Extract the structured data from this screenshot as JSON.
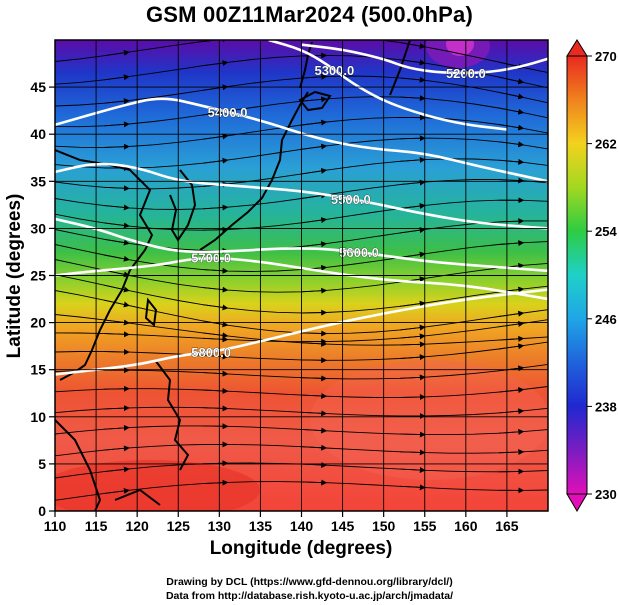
{
  "title": "GSM 00Z11Mar2024 (500.0hPa)",
  "xlabel": "Longitude (degrees)",
  "ylabel": "Latitude  (degrees)",
  "x_ticks": [
    110,
    115,
    120,
    125,
    130,
    135,
    140,
    145,
    150,
    155,
    160,
    165
  ],
  "y_ticks": [
    0,
    5,
    10,
    15,
    20,
    25,
    30,
    35,
    40,
    45
  ],
  "x_range": [
    110,
    170
  ],
  "y_range": [
    0,
    50
  ],
  "colorbar": {
    "range": [
      230,
      270
    ],
    "labels": [
      230,
      238,
      246,
      254,
      262,
      270
    ]
  },
  "contours": [
    {
      "label": "5200.0",
      "lat": [
        49.5,
        49.0,
        48.0,
        47.0,
        46.5,
        46.5,
        47.0,
        48.0
      ],
      "lon": [
        140,
        145,
        150,
        153,
        157,
        162,
        166,
        170
      ],
      "label_lon": 160
    },
    {
      "label": "5300.0",
      "lat": [
        50.0,
        49.0,
        47.5,
        45.5,
        43.5,
        42.0,
        41.0,
        40.5
      ],
      "lon": [
        136,
        140,
        143,
        146,
        150,
        155,
        160,
        165
      ],
      "label_lon": 144
    },
    {
      "label": "5400.0",
      "lat": [
        41.0,
        43.0,
        44.0,
        43.0,
        41.5,
        39.5,
        38.5,
        38.0,
        36.5,
        35.0
      ],
      "lon": [
        110,
        118,
        123,
        128,
        135,
        142,
        148,
        155,
        162,
        170
      ],
      "label_lon": 131
    },
    {
      "label": "5500.0",
      "lat": [
        36.0,
        37.0,
        36.5,
        35.0,
        34.5,
        34.0,
        33.0,
        31.5,
        30.5,
        30.0
      ],
      "lon": [
        110,
        115,
        120,
        125,
        132,
        140,
        147,
        155,
        162,
        170
      ],
      "label_lon": 146
    },
    {
      "label": "5600.0",
      "lat": [
        31.0,
        30.0,
        28.5,
        27.5,
        27.5,
        28.0,
        27.5,
        26.5,
        26.0,
        25.5
      ],
      "lon": [
        110,
        115,
        120,
        125,
        130,
        140,
        147,
        155,
        162,
        170
      ],
      "label_lon": 147
    },
    {
      "label": "5700.0",
      "lat": [
        25.0,
        25.5,
        26.0,
        27.0,
        26.5,
        25.5,
        24.5,
        24.0,
        22.5
      ],
      "lon": [
        110,
        115,
        122,
        128,
        135,
        142,
        150,
        160,
        170
      ],
      "label_lon": 129
    },
    {
      "label": "5800.0",
      "lat": [
        14.5,
        15.0,
        15.5,
        16.5,
        17.0,
        18.0,
        19.5,
        21.0,
        22.5,
        23.5
      ],
      "lon": [
        110,
        115,
        120,
        125,
        130,
        135,
        142,
        150,
        160,
        170
      ],
      "label_lon": 129
    }
  ],
  "credits": {
    "line1": "Drawing by DCL (https://www.gfd-dennou.org/library/dcl/)",
    "line2": "Data from http://database.rish.kyoto-u.ac.jp/arch/jmadata/"
  }
}
